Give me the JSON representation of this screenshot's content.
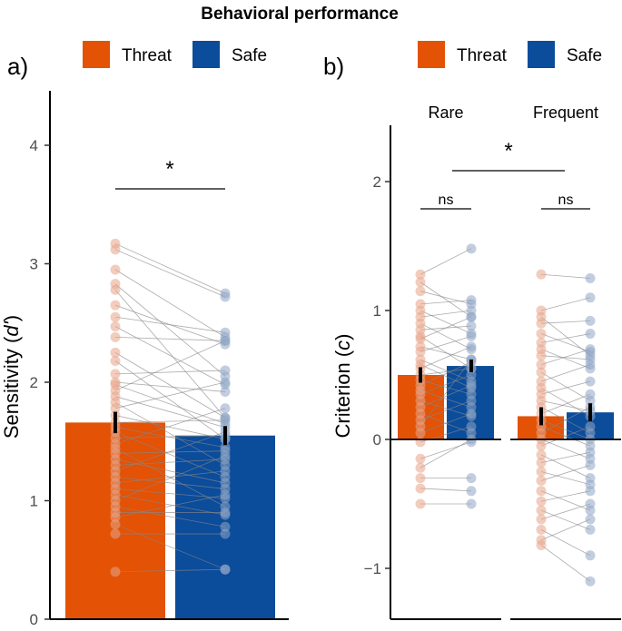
{
  "title": "Behavioral performance",
  "colors": {
    "threat": "#E35205",
    "safe": "#0B4C9B",
    "threat_dot": "#E8A488",
    "safe_dot": "#8FA6C4",
    "line": "#888888"
  },
  "legend": {
    "threat_label": "Threat",
    "safe_label": "Safe"
  },
  "chart_data": [
    {
      "panel_label": "a)",
      "type": "bar",
      "ylabel_main": "Sensitivity (",
      "ylabel_italic": "d'",
      "ylabel_close": ")",
      "ylim": [
        0,
        4.4
      ],
      "yticks": [
        "0",
        "1",
        "2",
        "3",
        "4"
      ],
      "series": [
        {
          "name": "Threat",
          "value": 1.66,
          "error": 0.09
        },
        {
          "name": "Safe",
          "value": 1.55,
          "error": 0.08
        }
      ],
      "significance": "*",
      "paired_points": [
        [
          3.17,
          2.75
        ],
        [
          3.12,
          2.72
        ],
        [
          2.95,
          2.38
        ],
        [
          2.83,
          2.05
        ],
        [
          2.78,
          1.7
        ],
        [
          2.65,
          2.32
        ],
        [
          2.55,
          2.42
        ],
        [
          2.47,
          1.98
        ],
        [
          2.38,
          2.35
        ],
        [
          2.25,
          1.7
        ],
        [
          2.18,
          1.52
        ],
        [
          2.07,
          2.1
        ],
        [
          2.0,
          1.92
        ],
        [
          1.98,
          1.65
        ],
        [
          1.93,
          2.35
        ],
        [
          1.88,
          1.62
        ],
        [
          1.83,
          1.3
        ],
        [
          1.78,
          2.0
        ],
        [
          1.72,
          1.52
        ],
        [
          1.66,
          1.68
        ],
        [
          1.62,
          1.45
        ],
        [
          1.58,
          1.2
        ],
        [
          1.53,
          1.55
        ],
        [
          1.48,
          1.78
        ],
        [
          1.44,
          0.95
        ],
        [
          1.4,
          1.42
        ],
        [
          1.35,
          1.15
        ],
        [
          1.3,
          1.35
        ],
        [
          1.25,
          1.58
        ],
        [
          1.2,
          1.1
        ],
        [
          1.15,
          1.25
        ],
        [
          1.1,
          1.02
        ],
        [
          1.05,
          0.88
        ],
        [
          1.0,
          1.38
        ],
        [
          0.95,
          0.78
        ],
        [
          0.9,
          0.9
        ],
        [
          0.86,
          1.05
        ],
        [
          0.8,
          0.42
        ],
        [
          0.72,
          0.72
        ],
        [
          0.4,
          0.42
        ]
      ]
    },
    {
      "panel_label": "b)",
      "type": "bar",
      "ylabel_main": "Criterion (",
      "ylabel_italic": "c",
      "ylabel_close": ")",
      "ylim": [
        -1.4,
        2.4
      ],
      "yticks": [
        "−1",
        "0",
        "1",
        "2"
      ],
      "facets": [
        "Rare",
        "Frequent"
      ],
      "series": [
        {
          "facet": "Rare",
          "name": "Threat",
          "value": 0.5,
          "error": 0.06
        },
        {
          "facet": "Rare",
          "name": "Safe",
          "value": 0.57,
          "error": 0.05
        },
        {
          "facet": "Frequent",
          "name": "Threat",
          "value": 0.18,
          "error": 0.07
        },
        {
          "facet": "Frequent",
          "name": "Safe",
          "value": 0.21,
          "error": 0.07
        }
      ],
      "significance_between": "*",
      "significance_within": [
        "ns",
        "ns"
      ],
      "paired_points": [
        [
          [
            1.28,
            1.48
          ],
          [
            1.22,
            0.95
          ],
          [
            1.15,
            1.05
          ],
          [
            1.05,
            1.08
          ],
          [
            1.0,
            0.82
          ],
          [
            0.95,
            1.0
          ],
          [
            0.9,
            0.7
          ],
          [
            0.85,
            0.88
          ],
          [
            0.8,
            0.55
          ],
          [
            0.78,
            0.95
          ],
          [
            0.72,
            0.62
          ],
          [
            0.68,
            0.8
          ],
          [
            0.62,
            0.45
          ],
          [
            0.58,
            0.4
          ],
          [
            0.55,
            0.72
          ],
          [
            0.5,
            0.55
          ],
          [
            0.46,
            0.35
          ],
          [
            0.42,
            0.6
          ],
          [
            0.38,
            0.25
          ],
          [
            0.35,
            0.5
          ],
          [
            0.3,
            0.18
          ],
          [
            0.25,
            0.42
          ],
          [
            0.2,
            0.05
          ],
          [
            0.15,
            0.3
          ],
          [
            0.1,
            0.62
          ],
          [
            0.05,
            0.2
          ],
          [
            -0.02,
            0.1
          ],
          [
            -0.15,
            -0.02
          ],
          [
            -0.22,
            0.0
          ],
          [
            -0.3,
            -0.3
          ],
          [
            -0.38,
            -0.4
          ],
          [
            -0.5,
            -0.5
          ]
        ],
        [
          [
            1.28,
            1.25
          ],
          [
            1.0,
            1.1
          ],
          [
            0.95,
            0.65
          ],
          [
            0.9,
            0.92
          ],
          [
            0.82,
            0.68
          ],
          [
            0.75,
            0.82
          ],
          [
            0.7,
            0.55
          ],
          [
            0.65,
            0.62
          ],
          [
            0.58,
            0.7
          ],
          [
            0.52,
            0.3
          ],
          [
            0.45,
            0.58
          ],
          [
            0.4,
            0.18
          ],
          [
            0.35,
            0.45
          ],
          [
            0.3,
            0.22
          ],
          [
            0.25,
            0.05
          ],
          [
            0.2,
            0.35
          ],
          [
            0.15,
            0.0
          ],
          [
            0.1,
            -0.05
          ],
          [
            0.05,
            0.25
          ],
          [
            0.0,
            -0.15
          ],
          [
            -0.05,
            0.1
          ],
          [
            -0.12,
            -0.3
          ],
          [
            -0.18,
            -0.1
          ],
          [
            -0.25,
            -0.35
          ],
          [
            -0.32,
            -0.2
          ],
          [
            -0.4,
            -0.55
          ],
          [
            -0.48,
            -0.4
          ],
          [
            -0.55,
            -0.7
          ],
          [
            -0.62,
            -0.5
          ],
          [
            -0.7,
            -0.9
          ],
          [
            -0.78,
            -0.62
          ],
          [
            -0.82,
            -1.1
          ]
        ]
      ]
    }
  ]
}
